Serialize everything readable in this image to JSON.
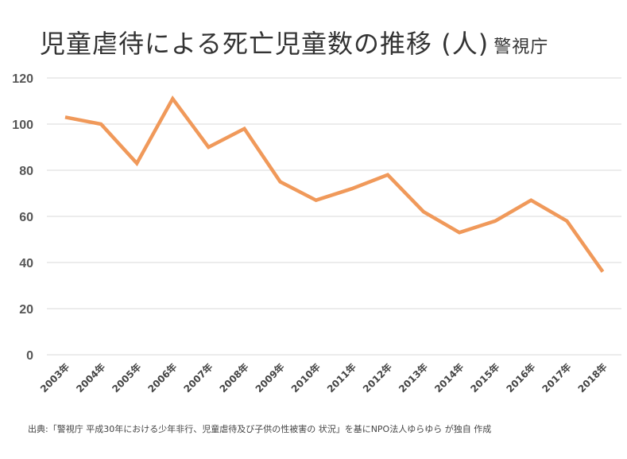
{
  "chart_data": {
    "type": "line",
    "title": "児童虐待による死亡児童数の推移 (人)",
    "subtitle": "警視庁",
    "categories": [
      "2003年",
      "2004年",
      "2005年",
      "2006年",
      "2007年",
      "2008年",
      "2009年",
      "2010年",
      "2011年",
      "2012年",
      "2013年",
      "2014年",
      "2015年",
      "2016年",
      "2017年",
      "2018年"
    ],
    "series": [
      {
        "name": "死亡児童数",
        "values": [
          103,
          100,
          83,
          111,
          90,
          98,
          75,
          67,
          72,
          78,
          62,
          53,
          58,
          67,
          58,
          36
        ],
        "color": "#F0995A"
      }
    ],
    "yticks": [
      "0",
      "20",
      "40",
      "60",
      "80",
      "100",
      "120"
    ],
    "ylim": [
      0,
      120
    ],
    "grid": true,
    "xlabel": "",
    "ylabel": ""
  },
  "note": "出典:「警視庁 平成30年における少年非行、児童虐待及び子供の性被害の 状況」を基にNPO法人ゆらゆら が独自 作成"
}
